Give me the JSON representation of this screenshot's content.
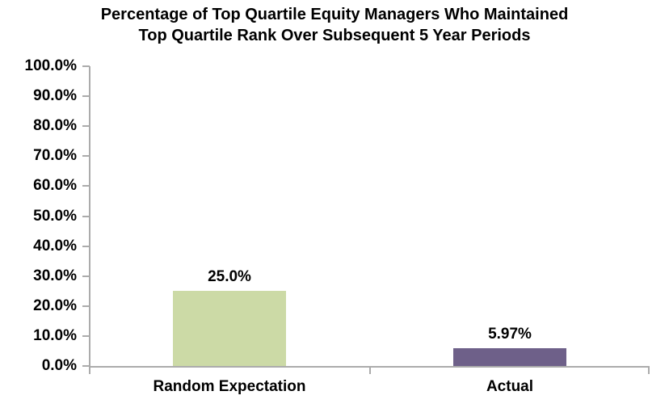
{
  "chart_data": {
    "type": "bar",
    "title": "Percentage of Top Quartile Equity Managers Who Maintained Top Quartile Rank Over Subsequent 5 Year Periods",
    "title_lines": [
      "Percentage of Top Quartile Equity Managers Who Maintained",
      "Top Quartile Rank Over Subsequent 5 Year Periods"
    ],
    "categories": [
      "Random Expectation",
      "Actual"
    ],
    "values": [
      25.0,
      5.97
    ],
    "data_labels": [
      "25.0%",
      "5.97%"
    ],
    "bar_colors": [
      "#CCDAA6",
      "#6E6089"
    ],
    "xlabel": "",
    "ylabel": "",
    "ylim": [
      0,
      100
    ],
    "ytick_step": 10,
    "ytick_labels": [
      "0.0%",
      "10.0%",
      "20.0%",
      "30.0%",
      "40.0%",
      "50.0%",
      "60.0%",
      "70.0%",
      "80.0%",
      "90.0%",
      "100.0%"
    ],
    "grid": false,
    "legend": false,
    "axis_color": "#ABABAB",
    "text_color": "#000000",
    "background_color": "#FFFFFF"
  }
}
